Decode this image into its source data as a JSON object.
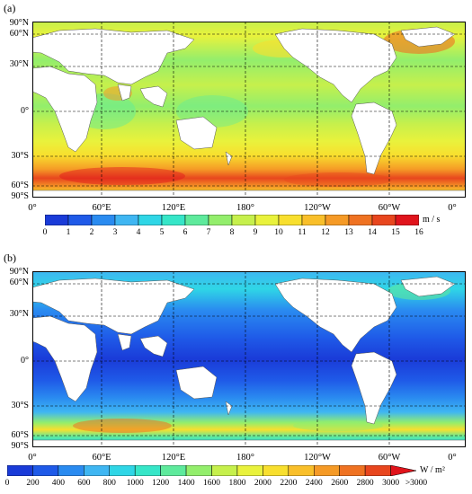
{
  "figure": {
    "panels": [
      {
        "label": "(a)",
        "lat_labels": [
          "90°N",
          "60°N",
          "30°N",
          "0°",
          "30°S",
          "60°S",
          "90°S"
        ],
        "lon_labels": [
          "0°",
          "60°E",
          "120°E",
          "180°",
          "120°W",
          "60°W",
          "0°"
        ],
        "colorbar": {
          "ticks": [
            "0",
            "1",
            "2",
            "3",
            "4",
            "5",
            "6",
            "7",
            "8",
            "9",
            "10",
            "11",
            "12",
            "13",
            "14",
            "15",
            "16"
          ],
          "unit": "m / s",
          "colors": [
            "#1a3bd8",
            "#1f5ae8",
            "#2a8bf0",
            "#3fb6f2",
            "#2fd6e6",
            "#36e6c8",
            "#5eea9c",
            "#93ee6c",
            "#c6f04c",
            "#e9f23c",
            "#f8df2e",
            "#f9bf2a",
            "#f59a26",
            "#ef7222",
            "#e8461e",
            "#e0141c"
          ]
        }
      },
      {
        "label": "(b)",
        "lat_labels": [
          "90°N",
          "60°N",
          "30°N",
          "0°",
          "30°S",
          "60°S",
          "90°S"
        ],
        "lon_labels": [
          "0°",
          "60°E",
          "120°E",
          "180°",
          "120°W",
          "60°W",
          "0°"
        ],
        "colorbar": {
          "ticks": [
            "0",
            "200",
            "400",
            "600",
            "800",
            "1000",
            "1200",
            "1400",
            "1600",
            "1800",
            "2000",
            "2200",
            "2400",
            "2600",
            "2800",
            "3000",
            ">3000"
          ],
          "unit": "W / m²",
          "colors": [
            "#1a3bd8",
            "#1f5ae8",
            "#2a8bf0",
            "#3fb6f2",
            "#2fd6e6",
            "#36e6c8",
            "#5eea9c",
            "#93ee6c",
            "#c6f04c",
            "#e9f23c",
            "#f8df2e",
            "#f9bf2a",
            "#f59a26",
            "#ef7222",
            "#e8461e",
            "#e0141c"
          ]
        }
      }
    ]
  }
}
